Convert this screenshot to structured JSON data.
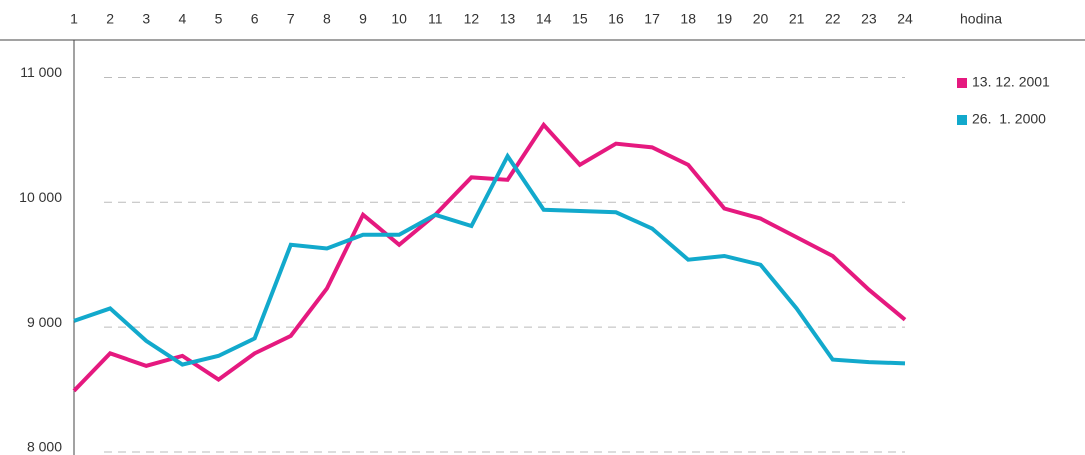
{
  "chart_data": {
    "type": "line",
    "x_label": "hodina",
    "x": [
      1,
      2,
      3,
      4,
      5,
      6,
      7,
      8,
      9,
      10,
      11,
      12,
      13,
      14,
      15,
      16,
      17,
      18,
      19,
      20,
      21,
      22,
      23,
      24
    ],
    "xlim": [
      1,
      24
    ],
    "ylim": [
      8000,
      11300
    ],
    "yticks": [
      {
        "value": 8000,
        "label": "8 000"
      },
      {
        "value": 9000,
        "label": "9 000"
      },
      {
        "value": 10000,
        "label": "10 000"
      },
      {
        "value": 11000,
        "label": "11 000"
      }
    ],
    "grid": true,
    "legend": "right",
    "series": [
      {
        "name": "13. 12. 2001",
        "color": "#e5197f",
        "values": [
          8490,
          8790,
          8690,
          8770,
          8580,
          8790,
          8930,
          9310,
          9900,
          9660,
          9900,
          10200,
          10180,
          10620,
          10300,
          10470,
          10440,
          10300,
          9950,
          9870,
          9720,
          9570,
          9300,
          9060
        ]
      },
      {
        "name": "26.  1. 2000",
        "color": "#12a9cc",
        "values": [
          9050,
          9150,
          8890,
          8700,
          8770,
          8910,
          9660,
          9630,
          9740,
          9740,
          9900,
          9810,
          10370,
          9940,
          9930,
          9920,
          9790,
          9540,
          9570,
          9500,
          9150,
          8740,
          8720,
          8710
        ]
      }
    ]
  }
}
